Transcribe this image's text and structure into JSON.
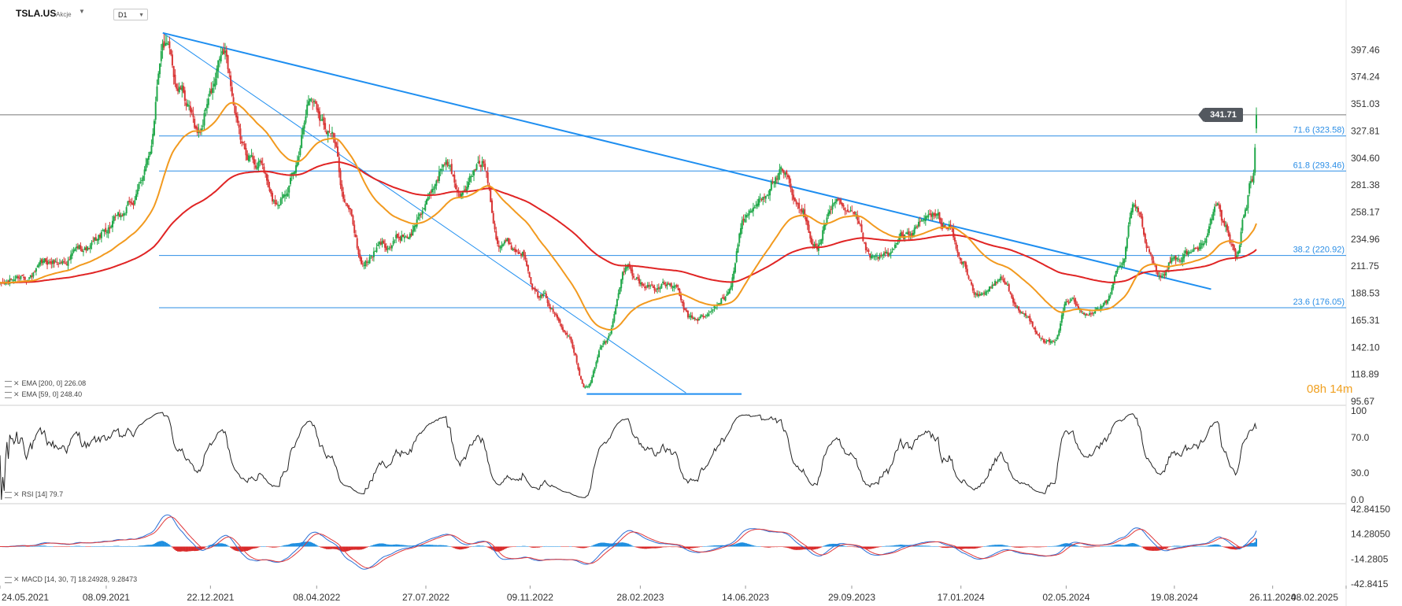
{
  "header": {
    "symbol": "TSLA.US",
    "instrument_type": "Akcje",
    "timeframe": "D1"
  },
  "indicators": {
    "ema200_label": "EMA [200, 0] 226.08",
    "ema59_label": "EMA [59, 0] 248.40",
    "rsi_label": "RSI [14] 79.7",
    "macd_label": "MACD [14, 30, 7] 18.24928, 9.28473"
  },
  "countdown": {
    "hours": "08",
    "h_unit": "h",
    "minutes": "14",
    "m_unit": "m"
  },
  "current_price": "341.71",
  "colors": {
    "up": "#21a84a",
    "down": "#d93636",
    "ema59": "#f29a1f",
    "ema200": "#e02424",
    "fib": "#2b8ee6",
    "trend": "#1e8ef0",
    "rsi": "#222222",
    "macd_line": "#2a6fd6",
    "signal_line": "#e0383b",
    "hist_up": "#1f8fe0",
    "hist_down": "#d92a2a",
    "price_line": "#777777"
  },
  "chart_data": [
    {
      "type": "candlestick",
      "x_axis_labels": [
        "24.05.2021",
        "08.09.2021",
        "22.12.2021",
        "08.04.2022",
        "27.07.2022",
        "09.11.2022",
        "28.02.2023",
        "14.06.2023",
        "29.09.2023",
        "17.01.2024",
        "02.05.2024",
        "19.08.2024",
        "26.11.2024",
        "08.02.2025"
      ],
      "y_axis_labels": [
        "397.46",
        "374.24",
        "351.03",
        "327.81",
        "304.60",
        "281.38",
        "258.17",
        "234.96",
        "211.75",
        "188.53",
        "165.31",
        "142.10",
        "118.89",
        "95.67"
      ],
      "ylim": [
        95.67,
        420
      ],
      "price_anchors": [
        [
          "2021-05-24",
          195
        ],
        [
          "2021-06-20",
          205
        ],
        [
          "2021-07-20",
          215
        ],
        [
          "2021-08-20",
          228
        ],
        [
          "2021-09-20",
          250
        ],
        [
          "2021-10-05",
          265
        ],
        [
          "2021-10-20",
          300
        ],
        [
          "2021-11-04",
          405
        ],
        [
          "2021-11-20",
          365
        ],
        [
          "2021-12-10",
          325
        ],
        [
          "2021-12-22",
          360
        ],
        [
          "2022-01-04",
          390
        ],
        [
          "2022-01-25",
          310
        ],
        [
          "2022-02-10",
          300
        ],
        [
          "2022-02-24",
          265
        ],
        [
          "2022-03-15",
          290
        ],
        [
          "2022-04-01",
          360
        ],
        [
          "2022-04-20",
          335
        ],
        [
          "2022-05-10",
          260
        ],
        [
          "2022-05-24",
          215
        ],
        [
          "2022-06-15",
          230
        ],
        [
          "2022-07-10",
          240
        ],
        [
          "2022-07-27",
          265
        ],
        [
          "2022-08-15",
          300
        ],
        [
          "2022-09-01",
          275
        ],
        [
          "2022-09-22",
          300
        ],
        [
          "2022-10-10",
          235
        ],
        [
          "2022-10-31",
          225
        ],
        [
          "2022-11-20",
          185
        ],
        [
          "2022-12-15",
          160
        ],
        [
          "2023-01-05",
          110
        ],
        [
          "2023-01-25",
          150
        ],
        [
          "2023-02-15",
          210
        ],
        [
          "2023-03-05",
          195
        ],
        [
          "2023-03-31",
          195
        ],
        [
          "2023-04-20",
          165
        ],
        [
          "2023-05-05",
          168
        ],
        [
          "2023-05-25",
          185
        ],
        [
          "2023-06-14",
          255
        ],
        [
          "2023-07-18",
          290
        ],
        [
          "2023-08-10",
          255
        ],
        [
          "2023-08-25",
          230
        ],
        [
          "2023-09-10",
          265
        ],
        [
          "2023-09-29",
          250
        ],
        [
          "2023-10-20",
          215
        ],
        [
          "2023-11-05",
          220
        ],
        [
          "2023-11-25",
          240
        ],
        [
          "2023-12-20",
          255
        ],
        [
          "2024-01-05",
          245
        ],
        [
          "2024-01-17",
          215
        ],
        [
          "2024-02-05",
          185
        ],
        [
          "2024-02-28",
          200
        ],
        [
          "2024-03-15",
          170
        ],
        [
          "2024-04-20",
          145
        ],
        [
          "2024-05-02",
          180
        ],
        [
          "2024-05-25",
          175
        ],
        [
          "2024-06-10",
          178
        ],
        [
          "2024-06-25",
          205
        ],
        [
          "2024-07-10",
          260
        ],
        [
          "2024-07-25",
          225
        ],
        [
          "2024-08-05",
          205
        ],
        [
          "2024-08-19",
          220
        ],
        [
          "2024-09-10",
          225
        ],
        [
          "2024-09-30",
          260
        ],
        [
          "2024-10-10",
          240
        ],
        [
          "2024-10-22",
          220
        ],
        [
          "2024-10-28",
          262
        ],
        [
          "2024-11-06",
          290
        ],
        [
          "2024-11-09",
          321
        ]
      ],
      "ema59_label_value": 248.4,
      "ema200_label_value": 226.08,
      "fibonacci": [
        {
          "label": "71.6 (323.58)",
          "value": 323.58
        },
        {
          "label": "61.8 (293.46)",
          "value": 293.46
        },
        {
          "label": "38.2 (220.92)",
          "value": 220.92
        },
        {
          "label": "23.6 (176.05)",
          "value": 176.05
        }
      ],
      "trendlines": [
        {
          "from": [
            "2021-11-04",
            412
          ],
          "to": [
            "2024-09-25",
            192
          ],
          "width": 2
        },
        {
          "from": [
            "2021-11-04",
            412
          ],
          "to": [
            "2023-04-15",
            103
          ],
          "width": 1
        }
      ],
      "support_line": {
        "from": "2023-01-05",
        "to": "2023-06-10",
        "value": 102
      },
      "current_price": 341.71
    },
    {
      "type": "line",
      "name": "RSI",
      "y_axis_labels": [
        "100",
        "70.0",
        "30.0",
        "0.0"
      ],
      "ylim": [
        0,
        100
      ],
      "last_value": 79.7
    },
    {
      "type": "bar+line",
      "name": "MACD",
      "y_axis_labels": [
        "42.84150",
        "14.28050",
        "-14.2805",
        "-42.8415"
      ],
      "ylim": [
        -42.8415,
        42.8415
      ],
      "macd_last": 18.24928,
      "signal_last": 9.28473
    }
  ]
}
